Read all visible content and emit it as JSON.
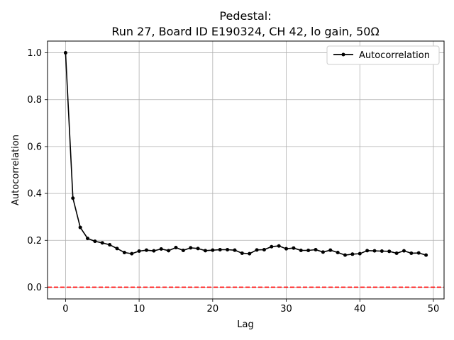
{
  "chart_data": {
    "type": "line",
    "title_line1": "Pedestal:",
    "title_line2": "Run 27, Board ID E190324, CH 42, lo gain, 50Ω",
    "xlabel": "Lag",
    "ylabel": "Autocorrelation",
    "xlim": [
      -2.45,
      51.45
    ],
    "ylim": [
      -0.05,
      1.05
    ],
    "xticks": [
      0,
      10,
      20,
      30,
      40,
      50
    ],
    "xtick_labels": [
      "0",
      "10",
      "20",
      "30",
      "40",
      "50"
    ],
    "yticks": [
      0.0,
      0.2,
      0.4,
      0.6,
      0.8,
      1.0
    ],
    "ytick_labels": [
      "0.0",
      "0.2",
      "0.4",
      "0.6",
      "0.8",
      "1.0"
    ],
    "grid": true,
    "legend_position": "top-right",
    "series": [
      {
        "name": "Autocorrelation",
        "color": "#000000",
        "marker": "dot",
        "x": [
          0,
          1,
          2,
          3,
          4,
          5,
          6,
          7,
          8,
          9,
          10,
          11,
          12,
          13,
          14,
          15,
          16,
          17,
          18,
          19,
          20,
          21,
          22,
          23,
          24,
          25,
          26,
          27,
          28,
          29,
          30,
          31,
          32,
          33,
          34,
          35,
          36,
          37,
          38,
          39,
          40,
          41,
          42,
          43,
          44,
          45,
          46,
          47,
          48,
          49
        ],
        "y": [
          1.0,
          0.38,
          0.255,
          0.208,
          0.196,
          0.189,
          0.181,
          0.165,
          0.148,
          0.143,
          0.154,
          0.158,
          0.155,
          0.163,
          0.156,
          0.169,
          0.157,
          0.168,
          0.165,
          0.156,
          0.158,
          0.16,
          0.16,
          0.158,
          0.145,
          0.143,
          0.159,
          0.16,
          0.173,
          0.176,
          0.164,
          0.167,
          0.157,
          0.157,
          0.16,
          0.15,
          0.158,
          0.148,
          0.137,
          0.141,
          0.143,
          0.156,
          0.155,
          0.154,
          0.153,
          0.145,
          0.155,
          0.145,
          0.146,
          0.137
        ]
      }
    ],
    "reference_line": {
      "y": 0.0,
      "color": "#ff0000",
      "style": "dashed"
    }
  }
}
